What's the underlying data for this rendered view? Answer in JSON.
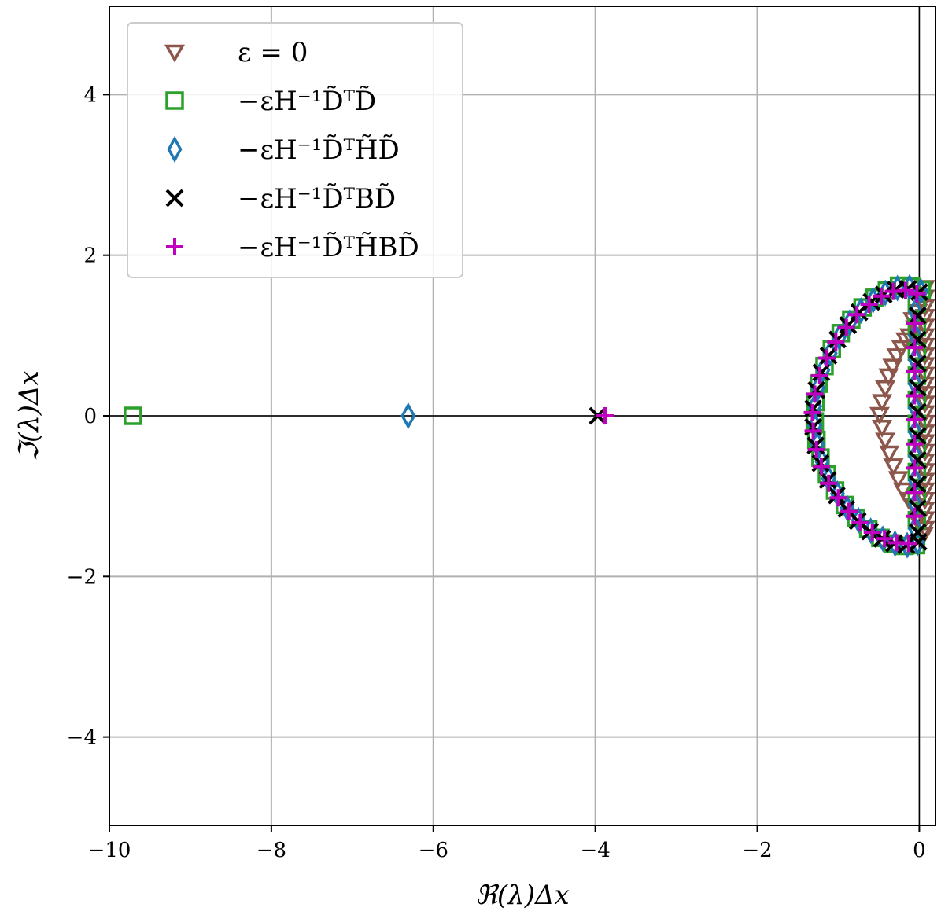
{
  "chart_data": {
    "type": "scatter",
    "title": "",
    "xlabel": "ℜ(λ)Δx",
    "ylabel": "ℑ(λ)Δx",
    "xlim": [
      -10.0,
      0.2
    ],
    "ylim": [
      -5.1,
      5.1
    ],
    "xticks": [
      -10,
      -8,
      -6,
      -4,
      -2,
      0
    ],
    "yticks": [
      -4,
      -2,
      0,
      2,
      4
    ],
    "xtick_labels": [
      "−10",
      "−8",
      "−6",
      "−4",
      "−2",
      "0"
    ],
    "ytick_labels": [
      "−4",
      "−2",
      "0",
      "2",
      "4"
    ],
    "grid": true,
    "legend_position": "top-left",
    "series": [
      {
        "name": "ε = 0",
        "marker": "triangle-down",
        "color": "#8c564b",
        "points": [
          [
            0.07,
            1.6
          ],
          [
            0.07,
            1.48
          ],
          [
            0.07,
            1.36
          ],
          [
            0.07,
            1.24
          ],
          [
            0.07,
            1.12
          ],
          [
            0.07,
            1.0
          ],
          [
            0.07,
            0.88
          ],
          [
            0.07,
            0.76
          ],
          [
            0.07,
            0.64
          ],
          [
            0.07,
            0.52
          ],
          [
            0.07,
            0.4
          ],
          [
            0.07,
            0.28
          ],
          [
            0.07,
            0.16
          ],
          [
            0.07,
            0.04
          ],
          [
            0.07,
            -0.08
          ],
          [
            0.07,
            -0.2
          ],
          [
            0.07,
            -0.32
          ],
          [
            0.07,
            -0.44
          ],
          [
            0.07,
            -0.56
          ],
          [
            0.07,
            -0.68
          ],
          [
            0.07,
            -0.8
          ],
          [
            0.07,
            -0.92
          ],
          [
            0.07,
            -1.04
          ],
          [
            0.07,
            -1.16
          ],
          [
            0.07,
            -1.28
          ],
          [
            0.07,
            -1.4
          ],
          [
            0.05,
            -1.48
          ],
          [
            -0.02,
            1.3
          ],
          [
            -0.05,
            1.1
          ],
          [
            -0.08,
            1.2
          ],
          [
            -0.12,
            1.0
          ],
          [
            -0.17,
            0.95
          ],
          [
            -0.22,
            0.85
          ],
          [
            -0.28,
            0.75
          ],
          [
            -0.33,
            0.62
          ],
          [
            -0.38,
            0.5
          ],
          [
            -0.42,
            0.35
          ],
          [
            -0.46,
            0.18
          ],
          [
            -0.49,
            0.02
          ],
          [
            -0.46,
            -0.14
          ],
          [
            -0.42,
            -0.3
          ],
          [
            -0.37,
            -0.46
          ],
          [
            -0.32,
            -0.62
          ],
          [
            -0.26,
            -0.78
          ],
          [
            -0.2,
            -0.92
          ],
          [
            -0.13,
            -1.04
          ],
          [
            -0.07,
            -1.12
          ],
          [
            -0.02,
            -1.3
          ]
        ]
      },
      {
        "name": "−εH⁻¹D̃ᵀD̃",
        "marker": "square",
        "color": "#2ca02c",
        "points": [
          [
            -9.71,
            0.0
          ],
          [
            0.03,
            1.57
          ],
          [
            -0.1,
            1.61
          ],
          [
            -0.25,
            1.62
          ],
          [
            -0.4,
            1.56
          ],
          [
            -0.55,
            1.47
          ],
          [
            -0.7,
            1.35
          ],
          [
            -0.84,
            1.2
          ],
          [
            -0.97,
            1.03
          ],
          [
            -1.08,
            0.83
          ],
          [
            -1.17,
            0.62
          ],
          [
            -1.24,
            0.4
          ],
          [
            -1.28,
            0.17
          ],
          [
            -1.29,
            -0.07
          ],
          [
            -1.27,
            -0.3
          ],
          [
            -1.22,
            -0.52
          ],
          [
            -1.14,
            -0.73
          ],
          [
            -1.04,
            -0.93
          ],
          [
            -0.92,
            -1.11
          ],
          [
            -0.78,
            -1.27
          ],
          [
            -0.63,
            -1.41
          ],
          [
            -0.48,
            -1.52
          ],
          [
            -0.33,
            -1.59
          ],
          [
            -0.18,
            -1.62
          ],
          [
            -0.04,
            -1.61
          ],
          [
            -0.03,
            1.4
          ],
          [
            -0.03,
            1.1
          ],
          [
            -0.03,
            0.8
          ],
          [
            -0.03,
            0.5
          ],
          [
            -0.03,
            0.2
          ],
          [
            -0.03,
            -0.1
          ],
          [
            -0.03,
            -0.4
          ],
          [
            -0.03,
            -0.7
          ],
          [
            -0.03,
            -1.0
          ],
          [
            -0.03,
            -1.3
          ]
        ]
      },
      {
        "name": "−εH⁻¹D̃ᵀH̃D̃",
        "marker": "diamond",
        "color": "#1f77b4",
        "points": [
          [
            -6.31,
            0.0
          ],
          [
            0.02,
            1.55
          ],
          [
            -0.12,
            1.6
          ],
          [
            -0.27,
            1.59
          ],
          [
            -0.42,
            1.53
          ],
          [
            -0.57,
            1.44
          ],
          [
            -0.72,
            1.31
          ],
          [
            -0.86,
            1.16
          ],
          [
            -0.99,
            0.98
          ],
          [
            -1.1,
            0.78
          ],
          [
            -1.19,
            0.57
          ],
          [
            -1.25,
            0.35
          ],
          [
            -1.29,
            0.12
          ],
          [
            -1.29,
            -0.12
          ],
          [
            -1.26,
            -0.35
          ],
          [
            -1.2,
            -0.57
          ],
          [
            -1.12,
            -0.78
          ],
          [
            -1.01,
            -0.97
          ],
          [
            -0.89,
            -1.15
          ],
          [
            -0.75,
            -1.3
          ],
          [
            -0.6,
            -1.43
          ],
          [
            -0.45,
            -1.53
          ],
          [
            -0.3,
            -1.59
          ],
          [
            -0.15,
            -1.61
          ],
          [
            -0.02,
            -1.58
          ],
          [
            -0.05,
            1.3
          ],
          [
            -0.05,
            1.0
          ],
          [
            -0.05,
            0.7
          ],
          [
            -0.05,
            0.4
          ],
          [
            -0.05,
            0.1
          ],
          [
            -0.05,
            -0.2
          ],
          [
            -0.05,
            -0.5
          ],
          [
            -0.05,
            -0.8
          ],
          [
            -0.05,
            -1.1
          ],
          [
            -0.05,
            -1.4
          ]
        ]
      },
      {
        "name": "−εH⁻¹D̃ᵀBD̃",
        "marker": "x",
        "color": "#000000",
        "points": [
          [
            -3.97,
            0.0
          ],
          [
            0.0,
            1.54
          ],
          [
            -0.14,
            1.58
          ],
          [
            -0.29,
            1.57
          ],
          [
            -0.44,
            1.51
          ],
          [
            -0.59,
            1.42
          ],
          [
            -0.74,
            1.29
          ],
          [
            -0.88,
            1.13
          ],
          [
            -1.01,
            0.95
          ],
          [
            -1.12,
            0.75
          ],
          [
            -1.21,
            0.54
          ],
          [
            -1.27,
            0.32
          ],
          [
            -1.31,
            0.09
          ],
          [
            -1.31,
            -0.14
          ],
          [
            -1.28,
            -0.37
          ],
          [
            -1.22,
            -0.59
          ],
          [
            -1.13,
            -0.8
          ],
          [
            -1.02,
            -0.99
          ],
          [
            -0.9,
            -1.16
          ],
          [
            -0.76,
            -1.31
          ],
          [
            -0.61,
            -1.44
          ],
          [
            -0.46,
            -1.53
          ],
          [
            -0.31,
            -1.59
          ],
          [
            -0.16,
            -1.61
          ],
          [
            -0.01,
            -1.57
          ],
          [
            -0.02,
            1.25
          ],
          [
            -0.02,
            0.95
          ],
          [
            -0.02,
            0.65
          ],
          [
            -0.02,
            0.35
          ],
          [
            -0.02,
            0.05
          ],
          [
            -0.02,
            -0.25
          ],
          [
            -0.02,
            -0.55
          ],
          [
            -0.02,
            -0.85
          ],
          [
            -0.02,
            -1.15
          ],
          [
            -0.02,
            -1.45
          ]
        ]
      },
      {
        "name": "−εH⁻¹D̃ᵀH̃BD̃",
        "marker": "plus",
        "color": "#bf00bf",
        "points": [
          [
            -3.88,
            0.0
          ],
          [
            -0.03,
            1.52
          ],
          [
            -0.17,
            1.56
          ],
          [
            -0.32,
            1.55
          ],
          [
            -0.47,
            1.49
          ],
          [
            -0.62,
            1.39
          ],
          [
            -0.77,
            1.26
          ],
          [
            -0.9,
            1.1
          ],
          [
            -1.03,
            0.92
          ],
          [
            -1.14,
            0.72
          ],
          [
            -1.23,
            0.5
          ],
          [
            -1.29,
            0.27
          ],
          [
            -1.32,
            0.04
          ],
          [
            -1.31,
            -0.19
          ],
          [
            -1.27,
            -0.42
          ],
          [
            -1.21,
            -0.63
          ],
          [
            -1.12,
            -0.84
          ],
          [
            -1.0,
            -1.02
          ],
          [
            -0.87,
            -1.19
          ],
          [
            -0.73,
            -1.33
          ],
          [
            -0.58,
            -1.45
          ],
          [
            -0.43,
            -1.53
          ],
          [
            -0.28,
            -1.58
          ],
          [
            -0.13,
            -1.59
          ],
          [
            -0.06,
            1.15
          ],
          [
            -0.06,
            0.85
          ],
          [
            -0.06,
            0.55
          ],
          [
            -0.06,
            0.25
          ],
          [
            -0.06,
            -0.05
          ],
          [
            -0.06,
            -0.35
          ],
          [
            -0.06,
            -0.65
          ],
          [
            -0.06,
            -0.95
          ],
          [
            -0.06,
            -1.25
          ]
        ]
      }
    ]
  }
}
